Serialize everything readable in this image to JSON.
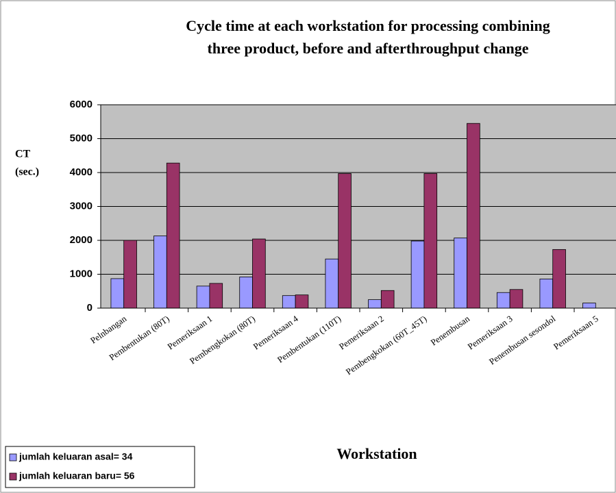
{
  "chart_data": {
    "type": "bar",
    "title": [
      "Cycle time at each workstation for processing combining",
      "three product, before and afterthroughput change"
    ],
    "y_label": [
      "CT",
      "(sec.)"
    ],
    "x_label": "Workstation",
    "categories": [
      "Pelnbangan",
      "Pembentukan (80T)",
      "Pemeriksaan 1",
      "Pembengkokan (80T)",
      "Pemeriksaan 4",
      "Pembentukan (110T)",
      "Pemeriksaan 2",
      "Pembengkokan (60T_45T)",
      "Penembusan",
      "Pemeriksaan 3",
      "Penembusan sesondol",
      "Pemeriksaan 5"
    ],
    "series": [
      {
        "name": "jumlah keluaran asal= 34",
        "color": "#9999ff",
        "values": [
          870,
          2130,
          650,
          920,
          370,
          1450,
          250,
          1980,
          2070,
          460,
          860,
          150
        ]
      },
      {
        "name": "jumlah keluaran baru= 56",
        "color": "#993366",
        "values": [
          2000,
          4280,
          730,
          2040,
          390,
          3970,
          520,
          3970,
          5450,
          550,
          1730,
          null
        ]
      }
    ],
    "ylim": [
      0,
      6000
    ],
    "yticks": [
      0,
      1000,
      2000,
      3000,
      4000,
      5000,
      6000
    ],
    "grid": true,
    "legend": "bottom-left"
  }
}
